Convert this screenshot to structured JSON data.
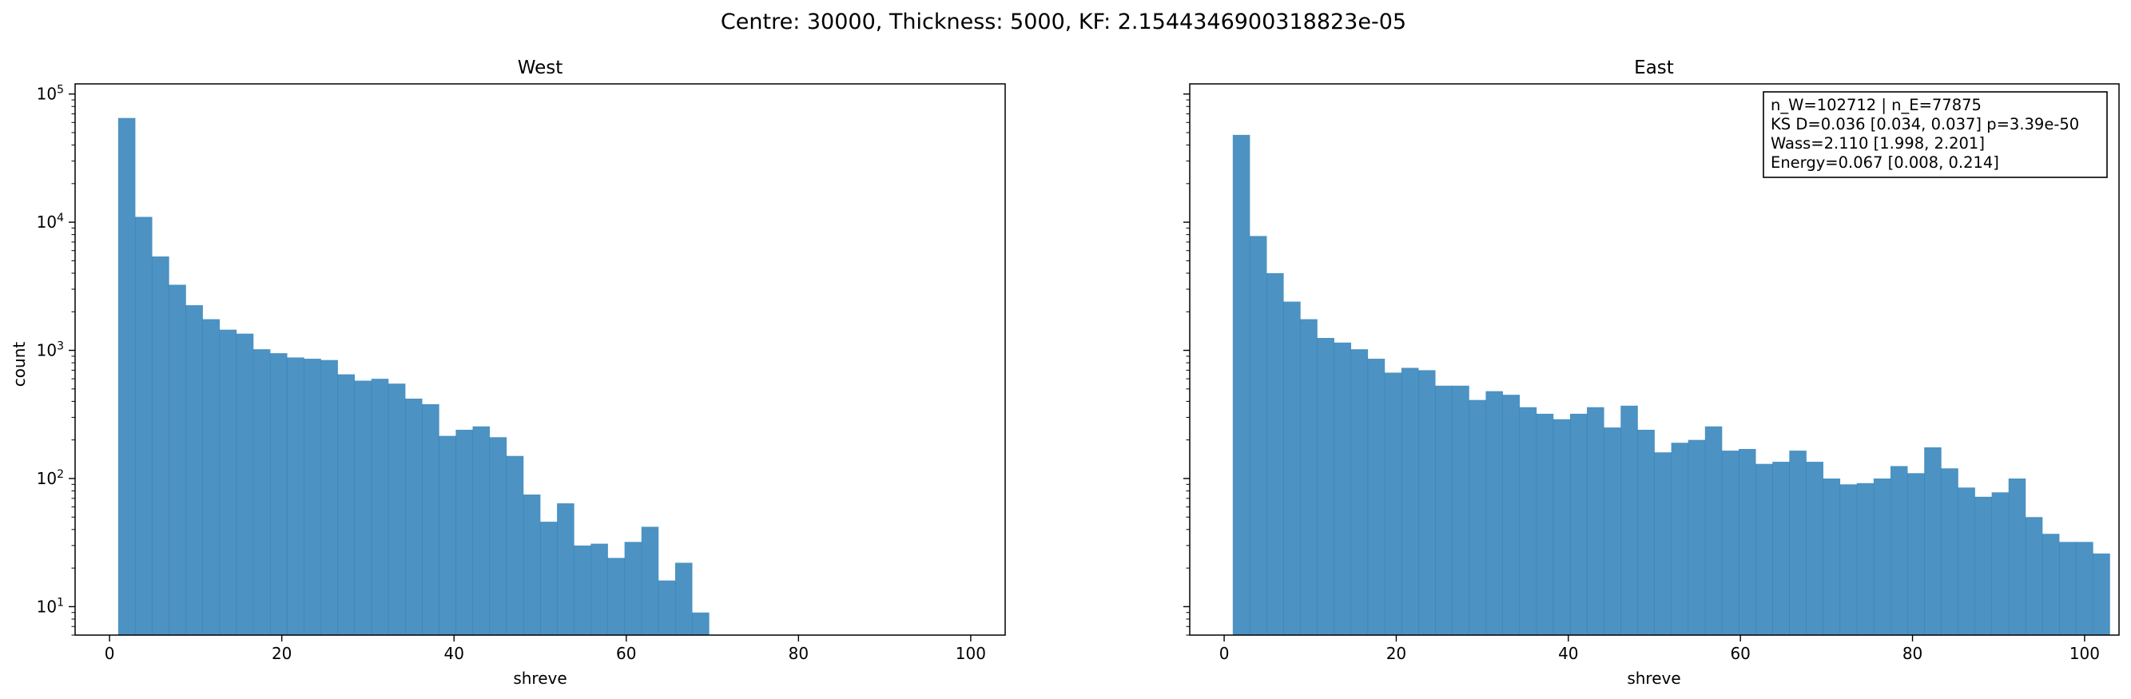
{
  "figure": {
    "suptitle": "Centre: 30000, Thickness: 5000, KF: 2.1544346900318823e-05"
  },
  "colors": {
    "bar": "#1f77b4",
    "bar_alpha": 0.8
  },
  "chart_data": [
    {
      "type": "bar",
      "title": "West",
      "xlabel": "shreve",
      "ylabel": "count",
      "yscale": "log",
      "xlim": [
        -4,
        104
      ],
      "ylim": [
        6,
        120000
      ],
      "xticks": [
        "0",
        "20",
        "40",
        "60",
        "80",
        "100"
      ],
      "yticks": [
        "10^1",
        "10^2",
        "10^3",
        "10^4",
        "10^5"
      ],
      "bin_width": 1.96,
      "bin_start": 1,
      "values": [
        65000,
        11000,
        5400,
        3250,
        2250,
        1750,
        1450,
        1350,
        1020,
        950,
        880,
        860,
        840,
        650,
        580,
        600,
        550,
        420,
        380,
        215,
        240,
        255,
        210,
        150,
        75,
        46,
        64,
        30,
        31,
        24,
        32,
        42,
        16,
        22,
        9
      ]
    },
    {
      "type": "bar",
      "title": "East",
      "xlabel": "shreve",
      "ylabel": "",
      "yscale": "log",
      "xlim": [
        -4,
        104
      ],
      "ylim": [
        6,
        120000
      ],
      "xticks": [
        "0",
        "20",
        "40",
        "60",
        "80",
        "100"
      ],
      "yticks": [],
      "bin_width": 1.96,
      "bin_start": 1,
      "values": [
        48000,
        7800,
        4000,
        2400,
        1750,
        1250,
        1150,
        1020,
        860,
        670,
        730,
        700,
        530,
        530,
        410,
        480,
        450,
        360,
        320,
        290,
        320,
        360,
        250,
        370,
        240,
        160,
        190,
        200,
        255,
        165,
        170,
        130,
        135,
        165,
        135,
        100,
        90,
        92,
        100,
        125,
        110,
        175,
        120,
        85,
        72,
        78,
        100,
        50,
        37,
        32,
        32,
        26
      ],
      "annotation": [
        "n_W=102712 | n_E=77875",
        "KS D=0.036 [0.034, 0.037]  p=3.39e-50",
        "Wass=2.110 [1.998, 2.201]",
        "Energy=0.067 [0.008, 0.214]"
      ]
    }
  ]
}
